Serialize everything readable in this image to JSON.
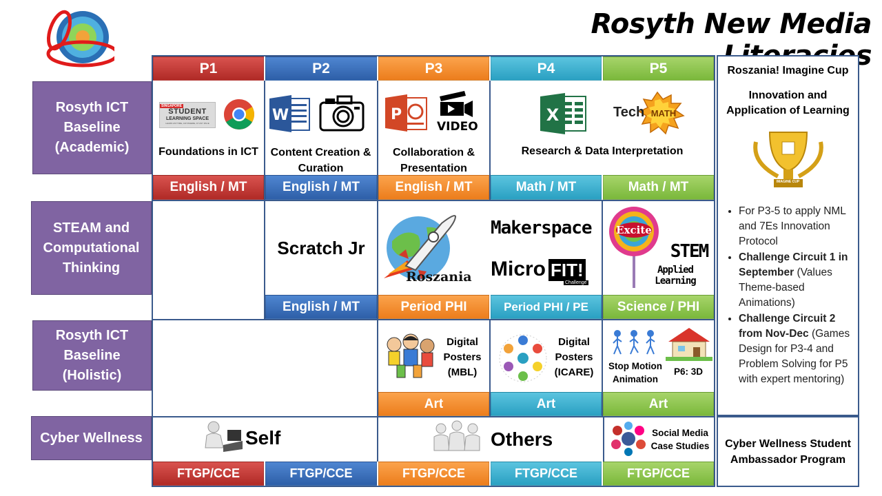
{
  "title": "Rosyth New Media Literacies",
  "levels": [
    "P1",
    "P2",
    "P3",
    "P4",
    "P5"
  ],
  "rows": {
    "academic": "Rosyth ICT Baseline (Academic)",
    "steam": "STEAM and Computational Thinking",
    "holistic": "Rosyth ICT Baseline (Holistic)",
    "cyber": "Cyber Wellness"
  },
  "academic": {
    "sls_line1": "SINGAPORE",
    "sls_line2": "STUDENT",
    "sls_line3": "LEARNING SPACE",
    "sls_tag": "LEARN ANYTIME, ANYWHERE, AT ANY PACE",
    "video_label": "VIDEO",
    "techmath_tech": "Tech",
    "techmath_math": "MATH",
    "cells": [
      "Foundations in ICT",
      "Content Creation & Curation",
      "Collaboration & Presentation",
      "Research & Data Interpretation"
    ],
    "subjects": [
      "English / MT",
      "English / MT",
      "English / MT",
      "Math / MT",
      "Math / MT"
    ]
  },
  "steam": {
    "scratch": "Scratch Jr",
    "roszania": "Roszania",
    "makerspace": "Makerspace",
    "microfit_a": "Micro",
    "microfit_b": "FIT!",
    "microfit_c": "Challenge",
    "excite": "Excite",
    "stem": "STEM",
    "applied": "Applied Learning",
    "subjects": [
      "English / MT",
      "Period PHI",
      "Period PHI / PE",
      "Science / PHI"
    ]
  },
  "holistic": {
    "p3": "Digital Posters (MBL)",
    "p4": "Digital Posters (ICARE)",
    "p5a": "Stop Motion Animation",
    "p5b": "P6: 3D",
    "subjects": [
      "Art",
      "Art",
      "Art"
    ]
  },
  "cyber": {
    "self": "Self",
    "others": "Others",
    "social": "Social Media Case Studies",
    "subjects": [
      "FTGP/CCE",
      "FTGP/CCE",
      "FTGP/CCE",
      "FTGP/CCE",
      "FTGP/CCE"
    ]
  },
  "side": {
    "cup_title": "Roszania! Imagine Cup",
    "innovation": "Innovation and Application of Learning",
    "trophy_label": "IMAGINE CUP",
    "b1": "For P3-5 to apply NML and 7Es Innovation Protocol",
    "b2_bold": "Challenge Circuit 1 in September",
    "b2_rest": "(Values Theme-based Animations)",
    "b3_bold": "Challenge Circuit 2 from Nov-Dec",
    "b3_rest": "(Games Design for P3-4 and Problem Solving for P5 with expert mentoring)",
    "ambassador": "Cyber Wellness Student Ambassador Program"
  },
  "colors": {
    "row_label": "#8064a2",
    "p1": "#c0392b",
    "p2": "#3d72c0",
    "p3": "#f58a2a",
    "p4": "#37b0d1",
    "p5": "#8cc652"
  }
}
